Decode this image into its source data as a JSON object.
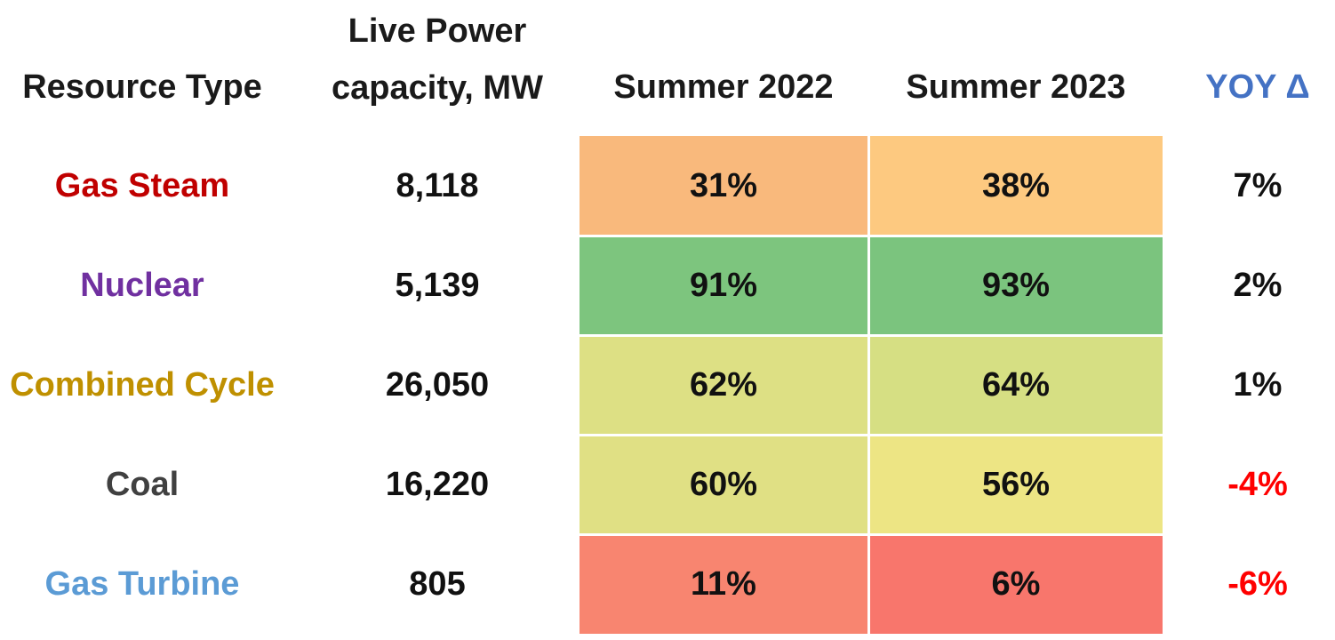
{
  "chart_data": {
    "type": "table",
    "columns": [
      "Resource Type",
      "Live Power capacity, MW",
      "Summer 2022",
      "Summer 2023",
      "YOY Δ"
    ],
    "header": {
      "resource_type": "Resource Type",
      "capacity_line1": "Live Power",
      "capacity_line2": "capacity, MW",
      "summer_2022": "Summer 2022",
      "summer_2023": "Summer 2023",
      "yoy": "YOY Δ",
      "yoy_color": "#4472c4"
    },
    "rows": [
      {
        "resource_type": "Gas Steam",
        "type_color": "#c00000",
        "capacity": "8,118",
        "summer_2022": "31%",
        "summer_2022_value": 31,
        "summer_2022_color": "#f9b97c",
        "summer_2023": "38%",
        "summer_2023_value": 38,
        "summer_2023_color": "#fdc980",
        "yoy": "7%",
        "yoy_color": "#111111"
      },
      {
        "resource_type": "Nuclear",
        "type_color": "#7030a0",
        "capacity": "5,139",
        "summer_2022": "91%",
        "summer_2022_value": 91,
        "summer_2022_color": "#7dc57e",
        "summer_2023": "93%",
        "summer_2023_value": 93,
        "summer_2023_color": "#7bc47e",
        "yoy": "2%",
        "yoy_color": "#111111"
      },
      {
        "resource_type": "Combined Cycle",
        "type_color": "#bf9000",
        "capacity": "26,050",
        "summer_2022": "62%",
        "summer_2022_value": 62,
        "summer_2022_color": "#dde084",
        "summer_2023": "64%",
        "summer_2023_value": 64,
        "summer_2023_color": "#d6df83",
        "yoy": "1%",
        "yoy_color": "#111111"
      },
      {
        "resource_type": "Coal",
        "type_color": "#404040",
        "capacity": "16,220",
        "summer_2022": "60%",
        "summer_2022_value": 60,
        "summer_2022_color": "#e0e084",
        "summer_2023": "56%",
        "summer_2023_value": 56,
        "summer_2023_color": "#ede584",
        "yoy": "-4%",
        "yoy_color": "#ff0000"
      },
      {
        "resource_type": "Gas Turbine",
        "type_color": "#5b9bd5",
        "capacity": "805",
        "summer_2022": "11%",
        "summer_2022_value": 11,
        "summer_2022_color": "#f88570",
        "summer_2023": "6%",
        "summer_2023_value": 6,
        "summer_2023_color": "#f8766c",
        "yoy": "-6%",
        "yoy_color": "#ff0000"
      }
    ]
  }
}
